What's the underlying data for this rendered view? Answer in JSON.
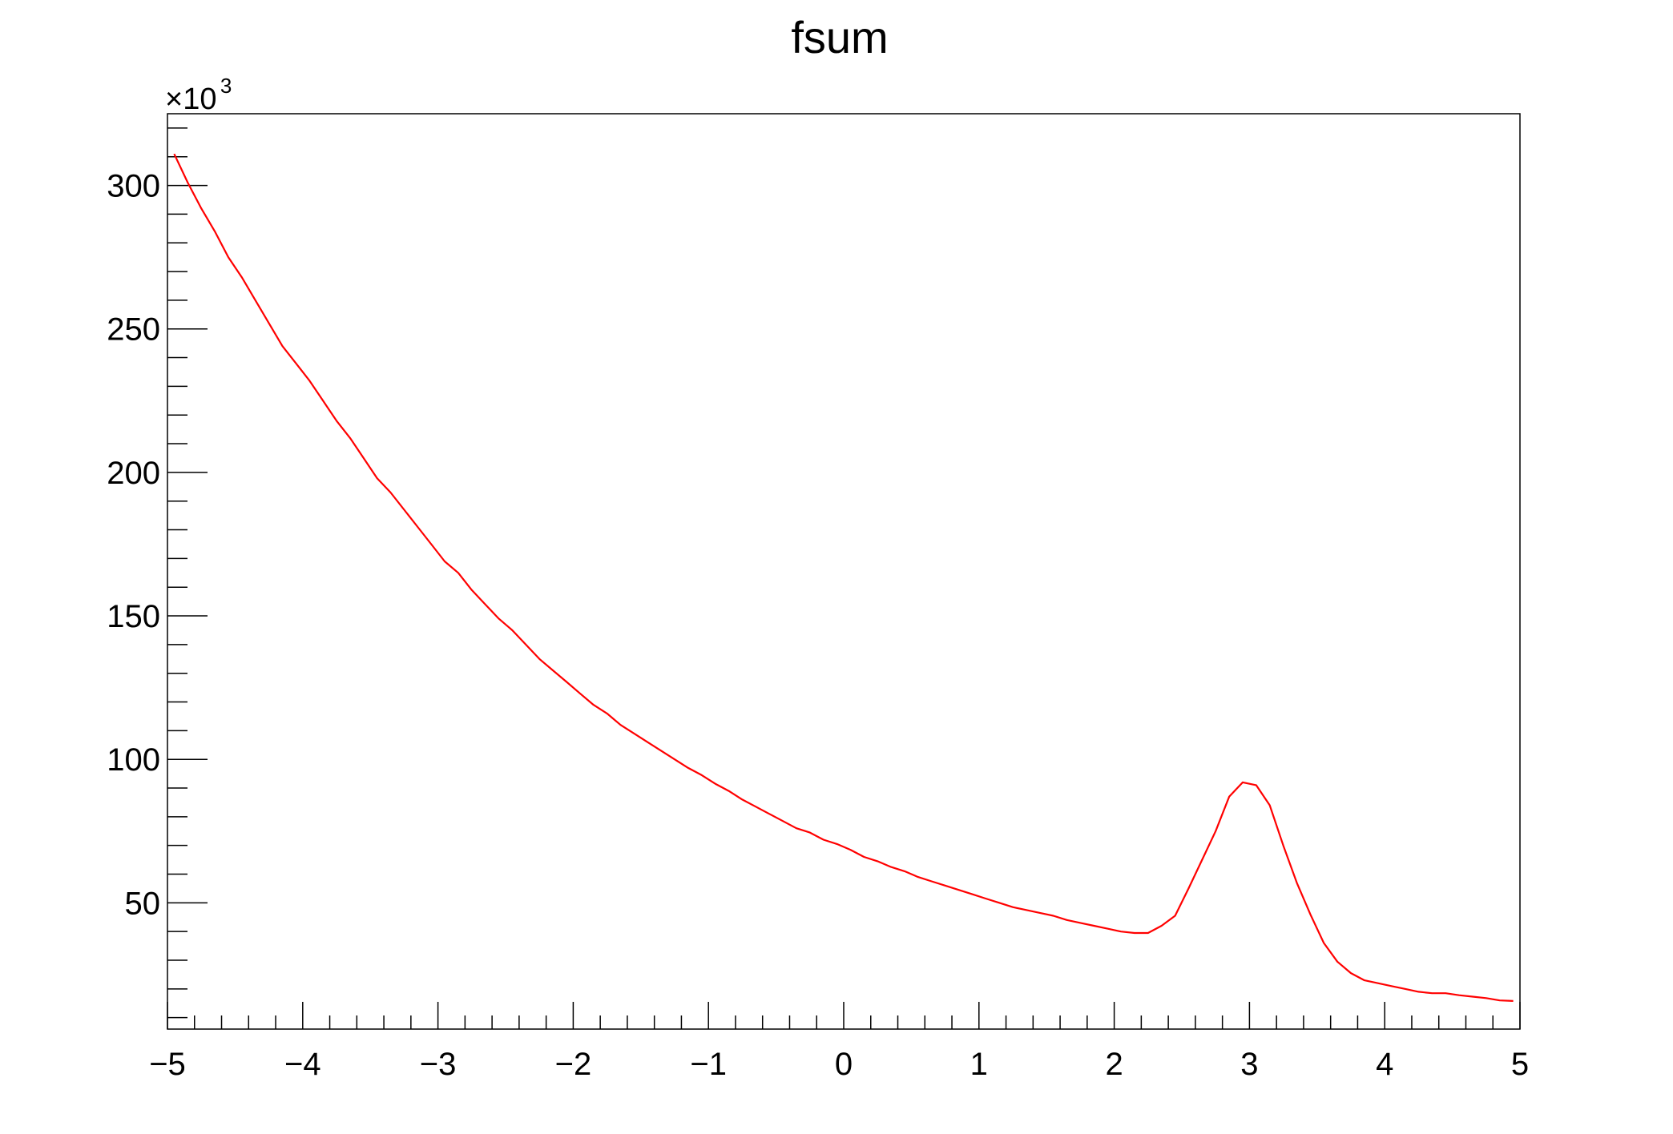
{
  "chart_data": {
    "type": "line",
    "title": "fsum",
    "xlabel": "",
    "ylabel": "",
    "y_multiplier": {
      "base": "×10",
      "exponent": "3"
    },
    "xlim": [
      -5,
      5
    ],
    "ylim": [
      6,
      325
    ],
    "x_ticks": [
      -5,
      -4,
      -3,
      -2,
      -1,
      0,
      1,
      2,
      3,
      4,
      5
    ],
    "x_tick_labels": [
      "−5",
      "−4",
      "−3",
      "−2",
      "−1",
      "0",
      "1",
      "2",
      "3",
      "4",
      "5"
    ],
    "y_ticks": [
      50,
      100,
      150,
      200,
      250,
      300
    ],
    "y_tick_labels": [
      "50",
      "100",
      "150",
      "200",
      "250",
      "300"
    ],
    "grid": false,
    "series": [
      {
        "name": "fsum",
        "color": "#ff0000",
        "x": [
          -4.95,
          -4.85,
          -4.75,
          -4.65,
          -4.55,
          -4.45,
          -4.35,
          -4.25,
          -4.15,
          -4.05,
          -3.95,
          -3.85,
          -3.75,
          -3.65,
          -3.55,
          -3.45,
          -3.35,
          -3.25,
          -3.15,
          -3.05,
          -2.95,
          -2.85,
          -2.75,
          -2.65,
          -2.55,
          -2.45,
          -2.35,
          -2.25,
          -2.15,
          -2.05,
          -1.95,
          -1.85,
          -1.75,
          -1.65,
          -1.55,
          -1.45,
          -1.35,
          -1.25,
          -1.15,
          -1.05,
          -0.95,
          -0.85,
          -0.75,
          -0.65,
          -0.55,
          -0.45,
          -0.35,
          -0.25,
          -0.15,
          -0.05,
          0.05,
          0.15,
          0.25,
          0.35,
          0.45,
          0.55,
          0.65,
          0.75,
          0.85,
          0.95,
          1.05,
          1.15,
          1.25,
          1.35,
          1.45,
          1.55,
          1.65,
          1.75,
          1.85,
          1.95,
          2.05,
          2.15,
          2.25,
          2.35,
          2.45,
          2.55,
          2.65,
          2.75,
          2.85,
          2.95,
          3.05,
          3.15,
          3.25,
          3.35,
          3.45,
          3.55,
          3.65,
          3.75,
          3.85,
          3.95,
          4.05,
          4.15,
          4.25,
          4.35,
          4.45,
          4.55,
          4.65,
          4.75,
          4.85,
          4.95
        ],
        "y": [
          311,
          301,
          292,
          284,
          275,
          268,
          260,
          252,
          244,
          238,
          232,
          225,
          218,
          212,
          205,
          198,
          193,
          187,
          181,
          175,
          169,
          165,
          159,
          154,
          149,
          145,
          140,
          135,
          131,
          127,
          123,
          119,
          116,
          112,
          109,
          106,
          103,
          100,
          97,
          94.5,
          91.5,
          89,
          86,
          83.5,
          81,
          78.5,
          76,
          74.5,
          72,
          70.5,
          68.5,
          66,
          64.5,
          62.5,
          61,
          59,
          57.5,
          56,
          54.5,
          53,
          51.5,
          50,
          48.5,
          47.5,
          46.5,
          45.5,
          44,
          43,
          42,
          41,
          40,
          39.5,
          39.5,
          42,
          45.5,
          55,
          65,
          75,
          87,
          92,
          91,
          84,
          70,
          57,
          46,
          36,
          29.5,
          25.5,
          23,
          22,
          21,
          20,
          19,
          18.5,
          18.5,
          17.8,
          17.3,
          16.8,
          16,
          15.8
        ]
      }
    ]
  }
}
